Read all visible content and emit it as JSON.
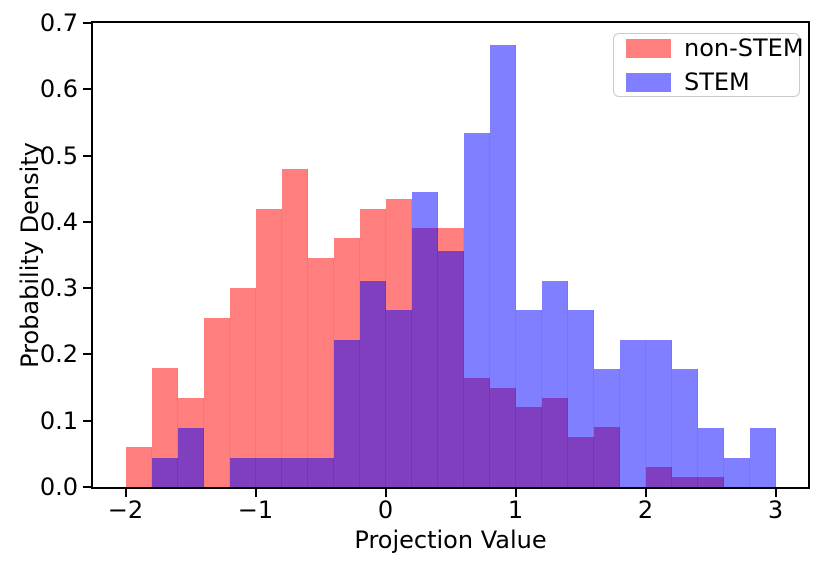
{
  "chart_data": {
    "type": "bar",
    "subtype": "overlaid-histogram",
    "title": "",
    "xlabel": "Projection Value",
    "ylabel": "Probability Density",
    "xlim": [
      -2.25,
      3.25
    ],
    "ylim": [
      0,
      0.7
    ],
    "grid": false,
    "legend_position": "upper right",
    "bin_start": -2.0,
    "bin_width": 0.2,
    "bin_edges": [
      -2.0,
      -1.8,
      -1.6,
      -1.4,
      -1.2,
      -1.0,
      -0.8,
      -0.6,
      -0.4,
      -0.2,
      0.0,
      0.2,
      0.4,
      0.6,
      0.8,
      1.0,
      1.2,
      1.4,
      1.6,
      1.8,
      2.0,
      2.2,
      2.4,
      2.6,
      2.8,
      3.0
    ],
    "series": [
      {
        "name": "non-STEM",
        "color": "rgba(255,0,0,0.5)",
        "solid_color": "#fc7e7e",
        "values": [
          0.06,
          0.18,
          0.135,
          0.255,
          0.3,
          0.42,
          0.48,
          0.345,
          0.375,
          0.42,
          0.435,
          0.39,
          0.39,
          0.165,
          0.15,
          0.12,
          0.135,
          0.075,
          0.09,
          0,
          0.03,
          0.015,
          0.015,
          0,
          0
        ]
      },
      {
        "name": "STEM",
        "color": "rgba(0,0,255,0.5)",
        "solid_color": "#8484f8",
        "values": [
          0,
          0.0445,
          0.089,
          0,
          0.0445,
          0.0445,
          0.0445,
          0.0445,
          0.2225,
          0.3115,
          0.267,
          0.445,
          0.356,
          0.534,
          0.6675,
          0.267,
          0.3115,
          0.267,
          0.178,
          0.2225,
          0.2225,
          0.178,
          0.089,
          0.0445,
          0.089
        ]
      }
    ],
    "legend": [
      {
        "label": "non-STEM",
        "color": "rgba(255,0,0,0.5)"
      },
      {
        "label": "STEM",
        "color": "rgba(0,0,255,0.5)"
      }
    ],
    "x_ticks": [
      -2,
      -1,
      0,
      1,
      2,
      3
    ],
    "x_tick_labels": [
      "−2",
      "−1",
      "0",
      "1",
      "2",
      "3"
    ],
    "y_ticks": [
      0.0,
      0.1,
      0.2,
      0.3,
      0.4,
      0.5,
      0.6,
      0.7
    ],
    "y_tick_labels": [
      "0.0",
      "0.1",
      "0.2",
      "0.3",
      "0.4",
      "0.5",
      "0.6",
      "0.7"
    ],
    "overlap_color": "#7f3fbf"
  }
}
